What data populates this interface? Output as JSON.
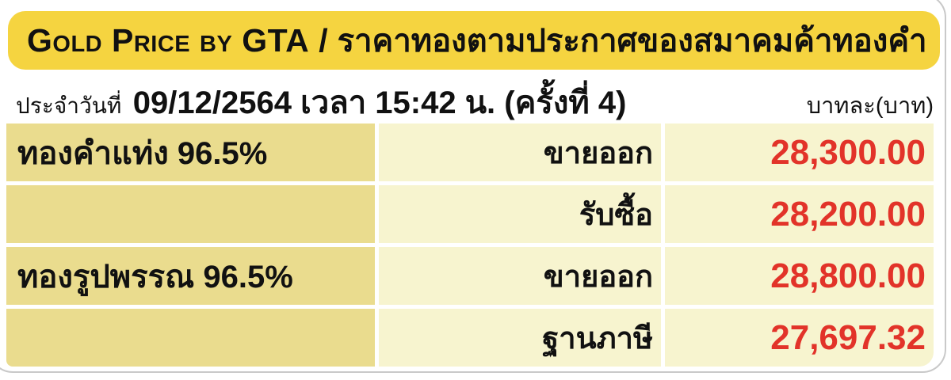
{
  "colors": {
    "header_yellow": "#F5D440",
    "row_khaki": "#EADC8E",
    "row_cream": "#F7F4CF",
    "price_red": "#E23329",
    "card_border_gray": "#C9C9C9",
    "text_black": "#111111"
  },
  "header": {
    "title_en": "Gold Price by GTA",
    "divider": "/",
    "title_th": "ราคาทองตามประกาศของสมาคมค้าทองคำ"
  },
  "subheader": {
    "date_prefix": "ประจำวันที่",
    "announcement": "09/12/2564 เวลา 15:42 น. (ครั้งที่ 4)",
    "unit_label": "บาทละ(บาท)"
  },
  "table": {
    "rows": [
      {
        "item": "ทองคำแท่ง 96.5%",
        "label": "ขายออก",
        "price": "28,300.00"
      },
      {
        "item": "",
        "label": "รับซื้อ",
        "price": "28,200.00"
      },
      {
        "item": "ทองรูปพรรณ 96.5%",
        "label": "ขายออก",
        "price": "28,800.00"
      },
      {
        "item": "",
        "label": "ฐานภาษี",
        "price": "27,697.32"
      }
    ]
  }
}
